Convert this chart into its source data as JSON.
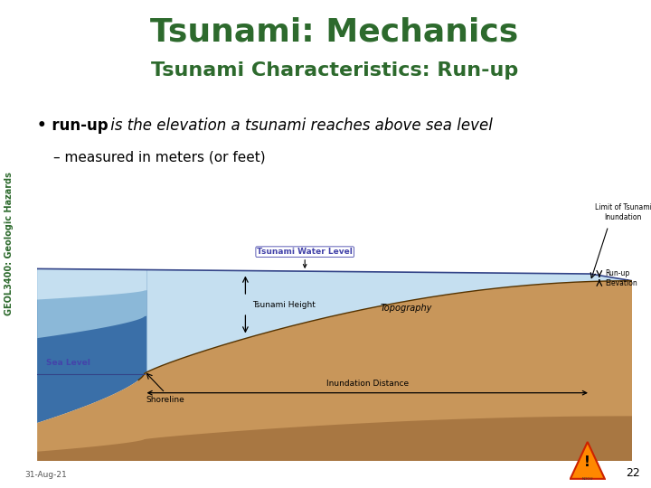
{
  "title": "Tsunami: Mechanics",
  "subtitle": "Tsunami Characteristics: Run-up",
  "title_color": "#2D6A2D",
  "subtitle_color": "#2D6A2D",
  "title_fontsize": 26,
  "subtitle_fontsize": 16,
  "bullet_bold": "run-up",
  "bullet_italic": " is the elevation a tsunami reaches above sea level",
  "sub_bullet": "– measured in meters (or feet)",
  "bullet_fontsize": 12,
  "sub_bullet_fontsize": 11,
  "sidebar_text": "GEOL3400: Geologic Hazards",
  "sidebar_color": "#2D6A2D",
  "date_text": "31-Aug-21",
  "page_num": "22",
  "bg_color": "#FFFFFF",
  "sidebar_bg": "#C8C8C8",
  "water_light": "#C5DFF0",
  "water_mid": "#8BB8D8",
  "water_dark": "#3A6FA8",
  "ocean_deep": "#1E4D8C",
  "land_tan": "#C8965A",
  "land_brown": "#A06830",
  "land_dark_brown": "#7A4A20",
  "label_blue": "#4444AA",
  "diagram_labels": {
    "tsunami_water_level": "Tsunami Water Level",
    "limit_line1": "Limit of Tsunami",
    "limit_line2": "Inundation",
    "tsunami_height": "Tsunami Height",
    "topography": "Topography",
    "runup_line1": "Run-up",
    "runup_line2": "Elevation",
    "sea_level": "Sea Level",
    "inundation_distance": "Inundation Distance",
    "shoreline": "Shoreline"
  }
}
